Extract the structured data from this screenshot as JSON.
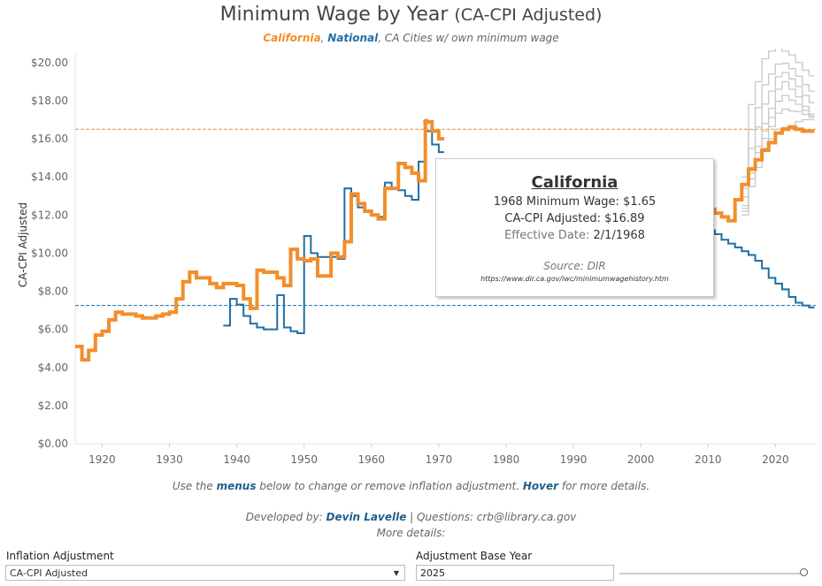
{
  "header": {
    "title_main": "Minimum Wage by Year",
    "title_sub": "(CA-CPI Adjusted)",
    "legend_california": "California",
    "legend_sep1": ", ",
    "legend_national": "National",
    "legend_sep2": ", ",
    "legend_cities": "CA Cities w/ own minimum wage"
  },
  "colors": {
    "california": "#f28e2b",
    "national": "#1f6fa6",
    "cities": "#c8c8c8"
  },
  "tooltip": {
    "title": "California",
    "line1": "1968 Minimum Wage: $1.65",
    "line2": "CA-CPI Adjusted: $16.89",
    "line3_label": "Effective Date: ",
    "line3_value": "2/1/1968",
    "source": "Source: DIR",
    "url": "https://www.dir.ca.gov/iwc/minimumwagehistory.htm"
  },
  "notes": {
    "line1_a": "Use the ",
    "line1_menus": "menus",
    "line1_b": " below to change or remove inflation adjustment. ",
    "line1_hover": "Hover",
    "line1_c": " for more details.",
    "dev_label": "Developed by: ",
    "dev_name": "Devin Lavelle",
    "dev_rest": " | Questions: crb@library.ca.gov",
    "more": "More details:"
  },
  "controls": {
    "inflation_label": "Inflation Adjustment",
    "inflation_value": "CA-CPI Adjusted",
    "base_year_label": "Adjustment Base Year",
    "base_year_value": "2025",
    "base_year_fraction": 1.0
  },
  "chart_data": {
    "type": "line",
    "title": "Minimum Wage by Year (CA-CPI Adjusted)",
    "xlabel": "",
    "ylabel": "CA-CPI Adjusted",
    "xlim": [
      1916,
      2026
    ],
    "ylim": [
      0,
      20.5
    ],
    "x_ticks": [
      1920,
      1930,
      1940,
      1950,
      1960,
      1970,
      1980,
      1990,
      2000,
      2010,
      2020
    ],
    "y_ticks": [
      0,
      2,
      4,
      6,
      8,
      10,
      12,
      14,
      16,
      18,
      20
    ],
    "y_tick_labels": [
      "$0.00",
      "$2.00",
      "$4.00",
      "$6.00",
      "$8.00",
      "$10.00",
      "$12.00",
      "$14.00",
      "$16.00",
      "$18.00",
      "$20.00"
    ],
    "reference_lines": [
      {
        "name": "California current",
        "value": 16.5
      },
      {
        "name": "National current",
        "value": 7.25
      }
    ],
    "series": [
      {
        "name": "California",
        "step": true,
        "x": [
          1916,
          1917,
          1918,
          1919,
          1920,
          1921,
          1922,
          1923,
          1925,
          1926,
          1927,
          1928,
          1929,
          1930,
          1931,
          1932,
          1933,
          1934,
          1936,
          1937,
          1938,
          1940,
          1941,
          1942,
          1943,
          1944,
          1946,
          1947,
          1948,
          1949,
          1950,
          1951,
          1952,
          1954,
          1955,
          1956,
          1957,
          1958,
          1959,
          1960,
          1961,
          1962,
          1964,
          1965,
          1966,
          1967,
          1968,
          1969,
          1970,
          2010,
          2011,
          2012,
          2013,
          2014,
          2015,
          2016,
          2017,
          2018,
          2019,
          2020,
          2021,
          2022,
          2023,
          2024,
          2025
        ],
        "values": [
          5.1,
          4.4,
          4.9,
          5.7,
          5.9,
          6.5,
          6.9,
          6.8,
          6.7,
          6.6,
          6.6,
          6.7,
          6.8,
          6.9,
          7.6,
          8.5,
          9.0,
          8.7,
          8.4,
          8.2,
          8.4,
          8.3,
          7.6,
          7.1,
          9.1,
          9.0,
          8.7,
          8.3,
          10.2,
          9.7,
          9.6,
          9.7,
          8.8,
          10.0,
          9.8,
          10.6,
          13.1,
          12.6,
          12.2,
          12.0,
          11.8,
          13.4,
          14.7,
          14.5,
          14.2,
          13.8,
          16.89,
          16.4,
          16.0,
          12.3,
          12.1,
          11.9,
          11.7,
          12.8,
          13.6,
          14.4,
          14.9,
          15.4,
          15.8,
          16.3,
          16.5,
          16.6,
          16.5,
          16.4,
          16.4
        ]
      },
      {
        "name": "National",
        "step": true,
        "x": [
          1938,
          1939,
          1940,
          1941,
          1942,
          1943,
          1944,
          1945,
          1946,
          1947,
          1948,
          1949,
          1950,
          1951,
          1952,
          1954,
          1955,
          1956,
          1957,
          1958,
          1959,
          1960,
          1961,
          1962,
          1963,
          1964,
          1965,
          1966,
          1967,
          1968,
          1969,
          1970,
          2010,
          2011,
          2012,
          2013,
          2014,
          2015,
          2016,
          2017,
          2018,
          2019,
          2020,
          2021,
          2022,
          2023,
          2024,
          2025
        ],
        "values": [
          6.2,
          7.6,
          7.3,
          6.7,
          6.3,
          6.1,
          6.0,
          6.0,
          7.8,
          6.1,
          5.9,
          5.8,
          10.9,
          10.0,
          9.8,
          9.8,
          9.7,
          13.4,
          13.0,
          12.4,
          12.2,
          12.0,
          11.9,
          13.7,
          13.4,
          13.3,
          13.0,
          12.8,
          14.8,
          16.4,
          15.7,
          15.3,
          11.2,
          11.0,
          10.7,
          10.5,
          10.3,
          10.1,
          9.9,
          9.6,
          9.2,
          8.7,
          8.4,
          8.1,
          7.7,
          7.4,
          7.25,
          7.15
        ]
      },
      {
        "name": "CA Cities w/ own minimum wage",
        "step": true,
        "x": [
          2015,
          2016,
          2017,
          2018,
          2019,
          2020,
          2021,
          2022,
          2023,
          2024,
          2025
        ],
        "values": [
          12.5,
          14.5,
          15.6,
          16.8,
          17.6,
          18.6,
          19.0,
          18.6,
          18.2,
          17.7,
          17.3
        ],
        "range_low": [
          12.0,
          13.5,
          14.5,
          15.5,
          16.0,
          16.5,
          16.6,
          16.7,
          16.9,
          17.0,
          17.0
        ],
        "range_high": [
          14.0,
          17.8,
          19.0,
          20.2,
          20.6,
          20.8,
          20.6,
          20.4,
          20.0,
          19.6,
          19.3
        ]
      }
    ]
  }
}
